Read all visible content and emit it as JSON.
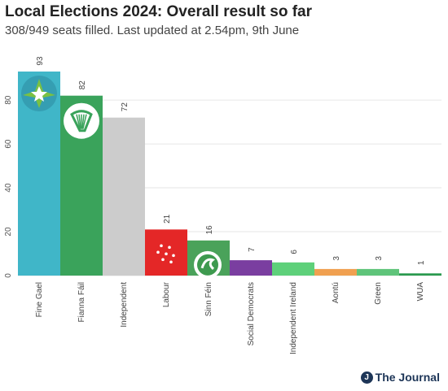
{
  "header": {
    "title": "Local Elections 2024: Overall result so far",
    "subtitle": "308/949 seats filled. Last updated at 2.54pm, 9th June"
  },
  "brand": {
    "mark": "J",
    "name": "The Journal"
  },
  "chart_data": {
    "type": "bar",
    "categories": [
      "Fine Gael",
      "Fianna Fáil",
      "Independent",
      "Labour",
      "Sinn Féin",
      "Social Democrats",
      "Independent Ireland",
      "Aontú",
      "Green",
      "WUA"
    ],
    "values": [
      93,
      82,
      72,
      21,
      16,
      7,
      6,
      3,
      3,
      1
    ],
    "data_labels": [
      "93",
      "82",
      "72",
      "21",
      "16",
      "7",
      "6",
      "3",
      "3",
      "1"
    ],
    "colors": [
      "#40b6c8",
      "#3aa35b",
      "#cccccc",
      "#e42727",
      "#4aa25a",
      "#7a3ea0",
      "#5ed07a",
      "#f0a050",
      "#5fc47a",
      "#2a9a4e"
    ],
    "logos": [
      "fine-gael-logo",
      "fianna-fail-logo",
      null,
      "labour-logo",
      "sinn-fein-logo",
      null,
      null,
      null,
      null,
      null
    ],
    "yticks": [
      "0",
      "20",
      "40",
      "60",
      "80"
    ],
    "ylim": [
      0,
      93
    ],
    "grid": true,
    "xlabel": "",
    "ylabel": ""
  }
}
